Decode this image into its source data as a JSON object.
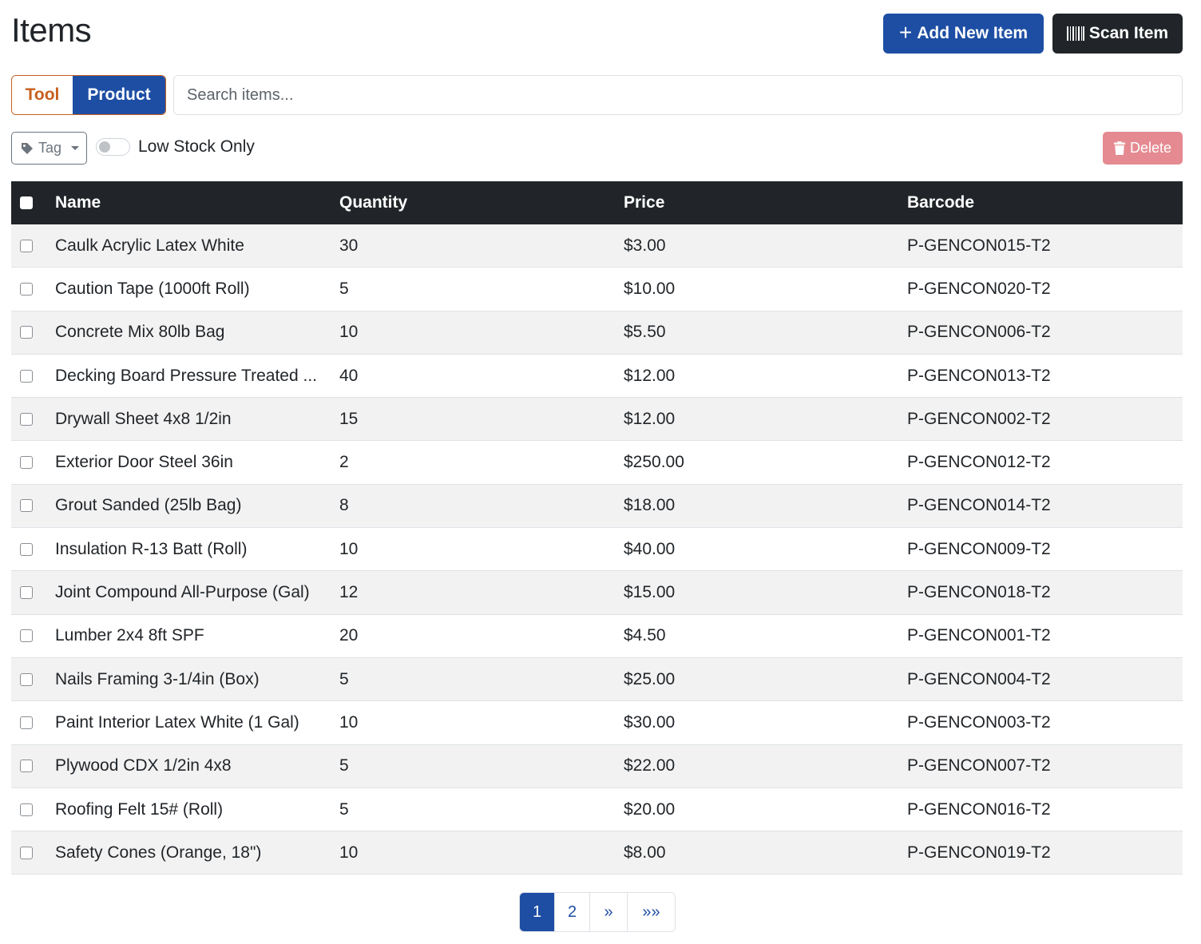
{
  "header": {
    "title": "Items",
    "add_label": "Add New Item",
    "add_icon": "plus-icon",
    "scan_label": "Scan Item",
    "scan_icon": "barcode-icon"
  },
  "filters": {
    "tool_label": "Tool",
    "product_label": "Product",
    "active_type": "Product",
    "search_placeholder": "Search items...",
    "search_value": "",
    "tag_label": "Tag",
    "low_stock_label": "Low Stock Only",
    "low_stock_on": false,
    "delete_label": "Delete"
  },
  "table": {
    "columns": [
      "Name",
      "Quantity",
      "Price",
      "Barcode"
    ],
    "rows": [
      {
        "name": "Caulk Acrylic Latex White",
        "qty": "30",
        "price": "$3.00",
        "barcode": "P-GENCON015-T2"
      },
      {
        "name": "Caution Tape (1000ft Roll)",
        "qty": "5",
        "price": "$10.00",
        "barcode": "P-GENCON020-T2"
      },
      {
        "name": "Concrete Mix 80lb Bag",
        "qty": "10",
        "price": "$5.50",
        "barcode": "P-GENCON006-T2"
      },
      {
        "name": "Decking Board Pressure Treated ...",
        "qty": "40",
        "price": "$12.00",
        "barcode": "P-GENCON013-T2"
      },
      {
        "name": "Drywall Sheet 4x8 1/2in",
        "qty": "15",
        "price": "$12.00",
        "barcode": "P-GENCON002-T2"
      },
      {
        "name": "Exterior Door Steel 36in",
        "qty": "2",
        "price": "$250.00",
        "barcode": "P-GENCON012-T2"
      },
      {
        "name": "Grout Sanded (25lb Bag)",
        "qty": "8",
        "price": "$18.00",
        "barcode": "P-GENCON014-T2"
      },
      {
        "name": "Insulation R-13 Batt (Roll)",
        "qty": "10",
        "price": "$40.00",
        "barcode": "P-GENCON009-T2"
      },
      {
        "name": "Joint Compound All-Purpose (Gal)",
        "qty": "12",
        "price": "$15.00",
        "barcode": "P-GENCON018-T2"
      },
      {
        "name": "Lumber 2x4 8ft SPF",
        "qty": "20",
        "price": "$4.50",
        "barcode": "P-GENCON001-T2"
      },
      {
        "name": "Nails Framing 3-1/4in (Box)",
        "qty": "5",
        "price": "$25.00",
        "barcode": "P-GENCON004-T2"
      },
      {
        "name": "Paint Interior Latex White (1 Gal)",
        "qty": "10",
        "price": "$30.00",
        "barcode": "P-GENCON003-T2"
      },
      {
        "name": "Plywood CDX 1/2in 4x8",
        "qty": "5",
        "price": "$22.00",
        "barcode": "P-GENCON007-T2"
      },
      {
        "name": "Roofing Felt 15# (Roll)",
        "qty": "5",
        "price": "$20.00",
        "barcode": "P-GENCON016-T2"
      },
      {
        "name": "Safety Cones (Orange, 18\")",
        "qty": "10",
        "price": "$8.00",
        "barcode": "P-GENCON019-T2"
      }
    ]
  },
  "pagination": {
    "pages": [
      "1",
      "2",
      "»",
      "»»"
    ],
    "current": "1"
  },
  "colors": {
    "primary": "#1d4ea3",
    "dark": "#212529",
    "tool_accent": "#c75f1e",
    "delete_disabled": "#e58a91"
  }
}
